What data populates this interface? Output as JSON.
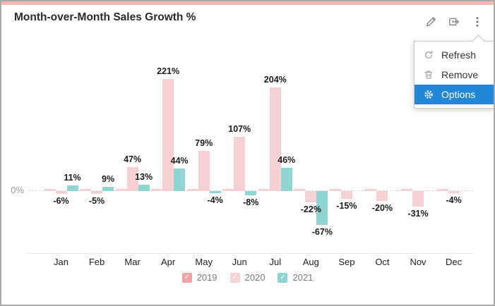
{
  "widget": {
    "title": "Month-over-Month Sales Growth %",
    "accent_color": "#fab9b7"
  },
  "toolbar": {
    "icons": [
      "edit-icon",
      "export-icon",
      "more-menu-icon"
    ]
  },
  "menu": {
    "active_bg": "#2187d8",
    "items": [
      {
        "label": "Refresh",
        "icon": "refresh-icon",
        "active": false
      },
      {
        "label": "Remove",
        "icon": "trash-icon",
        "active": false
      },
      {
        "label": "Options",
        "icon": "gear-icon",
        "active": true
      }
    ]
  },
  "chart_data": {
    "type": "bar",
    "title": "Month-over-Month Sales Growth %",
    "categories": [
      "Jan",
      "Feb",
      "Mar",
      "Apr",
      "May",
      "Jun",
      "Jul",
      "Aug",
      "Sep",
      "Oct",
      "Nov",
      "Dec"
    ],
    "series": [
      {
        "name": "2019",
        "color": "#f5d1d3",
        "show_labels": false,
        "values": [
          0,
          0,
          0,
          0,
          0,
          0,
          0,
          0,
          0,
          0,
          0,
          0
        ]
      },
      {
        "name": "2020",
        "color": "#f5d1d3",
        "show_labels": true,
        "values": [
          -6,
          -5,
          47,
          221,
          79,
          107,
          204,
          -22,
          -15,
          -20,
          -31,
          -4
        ]
      },
      {
        "name": "2021",
        "color": "#8fd5d1",
        "show_labels": true,
        "values": [
          11,
          9,
          13,
          44,
          -4,
          -8,
          46,
          -67,
          null,
          null,
          null,
          null
        ]
      }
    ],
    "label_format": "{value}%",
    "axis": {
      "zero_label": "0%",
      "ylim": [
        -67,
        221
      ],
      "grid": false
    },
    "legend_position": "bottom",
    "legend": [
      {
        "label": "2019",
        "color": "#f2a3a8"
      },
      {
        "label": "2020",
        "color": "#f8d3d5"
      },
      {
        "label": "2021",
        "color": "#8ed4d0"
      }
    ]
  }
}
